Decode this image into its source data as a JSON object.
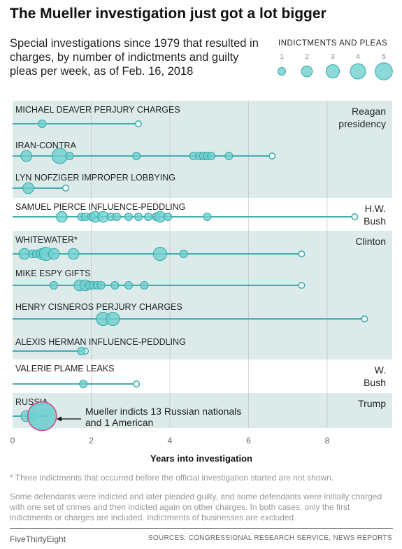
{
  "header": {
    "title": "The Mueller investigation just got a lot bigger",
    "subtitle": "Special investigations since 1979 that resulted in charges, by number of indictments and guilty pleas per week, as of Feb. 16, 2018"
  },
  "legend": {
    "title": "INDICTMENTS AND PLEAS",
    "sizes": [
      1,
      2,
      3,
      4,
      5
    ]
  },
  "colors": {
    "band": "#dcebea",
    "dot_fill": "#6fcfcf",
    "dot_stroke": "#35a6a6",
    "line": "#3fb0b0",
    "highlight_stroke": "#d04a8c",
    "text": "#222222",
    "grid": "#9a9a9a"
  },
  "chart_data": {
    "type": "scatter",
    "xlabel": "Years into investigation",
    "xlim": [
      0,
      9.6
    ],
    "xticks": [
      0,
      2,
      4,
      6,
      8
    ],
    "grid": true,
    "presidencies": [
      {
        "name": "Reagan presidency",
        "shaded": true,
        "rows": [
          0,
          1,
          2
        ]
      },
      {
        "name": "H.W. Bush",
        "shaded": false,
        "rows": [
          3
        ]
      },
      {
        "name": "Clinton",
        "shaded": true,
        "rows": [
          4,
          5,
          6,
          7
        ]
      },
      {
        "name": "W. Bush",
        "shaded": false,
        "rows": [
          8
        ]
      },
      {
        "name": "Trump",
        "shaded": true,
        "rows": [
          9
        ]
      }
    ],
    "series": [
      {
        "name": "MICHAEL DEAVER PERJURY CHARGES",
        "end": 3.2,
        "events": [
          {
            "x": 0.75,
            "n": 1
          }
        ]
      },
      {
        "name": "IRAN-CONTRA",
        "end": 6.6,
        "events": [
          {
            "x": 0.35,
            "n": 2
          },
          {
            "x": 1.2,
            "n": 4
          },
          {
            "x": 1.45,
            "n": 1
          },
          {
            "x": 3.15,
            "n": 1
          },
          {
            "x": 4.6,
            "n": 1
          },
          {
            "x": 4.75,
            "n": 1
          },
          {
            "x": 4.85,
            "n": 1
          },
          {
            "x": 4.95,
            "n": 1
          },
          {
            "x": 5.05,
            "n": 1
          },
          {
            "x": 5.5,
            "n": 1
          }
        ]
      },
      {
        "name": "LYN NOFZIGER IMPROPER LOBBYING",
        "end": 1.35,
        "events": [
          {
            "x": 0.4,
            "n": 2
          }
        ]
      },
      {
        "name": "SAMUEL PIERCE INFLUENCE-PEDDLING",
        "end": 8.7,
        "events": [
          {
            "x": 1.25,
            "n": 2
          },
          {
            "x": 1.75,
            "n": 1
          },
          {
            "x": 1.85,
            "n": 1
          },
          {
            "x": 2.0,
            "n": 1
          },
          {
            "x": 2.1,
            "n": 2
          },
          {
            "x": 2.3,
            "n": 2
          },
          {
            "x": 2.5,
            "n": 1
          },
          {
            "x": 2.65,
            "n": 1
          },
          {
            "x": 2.95,
            "n": 1
          },
          {
            "x": 3.2,
            "n": 1
          },
          {
            "x": 3.45,
            "n": 1
          },
          {
            "x": 3.65,
            "n": 1
          },
          {
            "x": 3.75,
            "n": 2
          },
          {
            "x": 3.95,
            "n": 1
          },
          {
            "x": 4.95,
            "n": 1
          }
        ]
      },
      {
        "name": "WHITEWATER*",
        "end": 7.35,
        "events": [
          {
            "x": 0.3,
            "n": 2
          },
          {
            "x": 0.5,
            "n": 1
          },
          {
            "x": 0.6,
            "n": 1
          },
          {
            "x": 0.75,
            "n": 2
          },
          {
            "x": 0.85,
            "n": 3
          },
          {
            "x": 1.05,
            "n": 2
          },
          {
            "x": 1.55,
            "n": 2
          },
          {
            "x": 3.75,
            "n": 3
          },
          {
            "x": 4.35,
            "n": 1
          }
        ]
      },
      {
        "name": "MIKE ESPY GIFTS",
        "end": 7.35,
        "events": [
          {
            "x": 1.05,
            "n": 1
          },
          {
            "x": 1.7,
            "n": 2
          },
          {
            "x": 1.85,
            "n": 2
          },
          {
            "x": 1.95,
            "n": 1
          },
          {
            "x": 2.05,
            "n": 1
          },
          {
            "x": 2.15,
            "n": 1
          },
          {
            "x": 2.25,
            "n": 1
          },
          {
            "x": 2.6,
            "n": 1
          },
          {
            "x": 2.95,
            "n": 1
          },
          {
            "x": 3.35,
            "n": 1
          }
        ]
      },
      {
        "name": "HENRY CISNEROS PERJURY CHARGES",
        "end": 8.95,
        "events": [
          {
            "x": 2.3,
            "n": 3
          },
          {
            "x": 2.55,
            "n": 3
          }
        ]
      },
      {
        "name": "ALEXIS HERMAN INFLUENCE-PEDDLING",
        "end": 1.85,
        "events": [
          {
            "x": 1.75,
            "n": 1
          }
        ]
      },
      {
        "name": "VALERIE PLAME LEAKS",
        "end": 3.15,
        "events": [
          {
            "x": 1.8,
            "n": 1
          }
        ]
      },
      {
        "name": "RUSSIA",
        "end": null,
        "events": [
          {
            "x": 0.35,
            "n": 2
          },
          {
            "x": 0.5,
            "n": 1
          },
          {
            "x": 0.75,
            "n": 14,
            "highlight": true
          }
        ]
      }
    ],
    "annotation": "Mueller indicts 13 Russian nationals and 1 American"
  },
  "footnote": "* Three indictments that occurred before the official investigation started are not shown.",
  "note": "Some defendants were indicted and later pleaded guilty, and some defendants were initially charged with one set of crimes and then indicted again on other charges. In both cases, only the first indictments or charges are included. Indictments of businesses are excluded.",
  "footer": {
    "brand": "FiveThirtyEight",
    "sources": "SOURCES: CONGRESSIONAL RESEARCH SERVICE, NEWS REPORTS"
  }
}
